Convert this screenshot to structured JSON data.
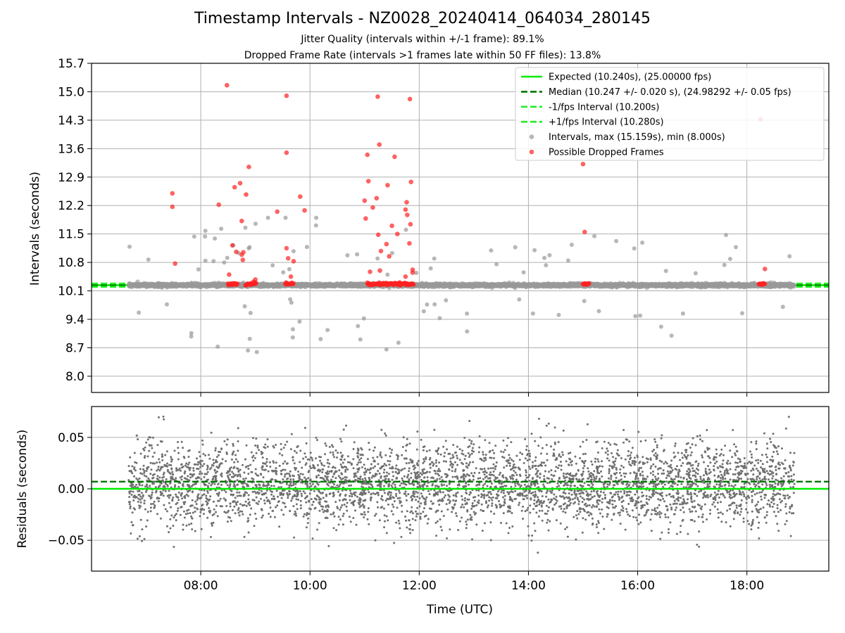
{
  "figure": {
    "title": "Timestamp Intervals - NZ0028_20240414_064034_280145",
    "subtitle_jitter": "Jitter Quality (intervals within +/-1 frame): 89.1%",
    "subtitle_dropped": "Dropped Frame Rate (intervals >1 frames late within 50 FF files): 13.8%"
  },
  "colors": {
    "expected": "#00ee00",
    "median": "#007700",
    "interval_band": "#22ee22",
    "intervals": "#999999",
    "dropped": "#ff2020",
    "residuals": "#707070",
    "grid": "#b0b0b0"
  },
  "chart_data": [
    {
      "id": "intervals",
      "type": "scatter",
      "ylabel": "Intervals (seconds)",
      "xlim_hours": [
        6.0,
        19.5
      ],
      "ylim": [
        7.6,
        15.7
      ],
      "yticks": [
        "8.0",
        "8.7",
        "9.4",
        "10.1",
        "10.8",
        "11.5",
        "12.2",
        "12.9",
        "13.6",
        "14.3",
        "15.0",
        "15.7"
      ],
      "grid": true,
      "legend_position": "top-right",
      "lines": [
        {
          "name": "Expected (10.240s), (25.00000 fps)",
          "y": 10.24,
          "style": "solid",
          "color": "#00ee00"
        },
        {
          "name": "Median (10.247 +/- 0.020 s), (24.98292 +/- 0.05 fps)",
          "y": 10.247,
          "style": "dashed",
          "color": "#007700"
        },
        {
          "name": "-1/fps Interval (10.200s)",
          "y": 10.2,
          "style": "dashed",
          "color": "#22ee22"
        },
        {
          "name": "+1/fps Interval (10.280s)",
          "y": 10.28,
          "style": "dashed",
          "color": "#22ee22"
        }
      ],
      "series": [
        {
          "name": "Intervals, max (15.159s), min (8.000s)",
          "color": "#999999",
          "count": 4250,
          "time_range_hours": [
            6.68,
            18.87
          ],
          "max": 15.159,
          "min": 8.0
        },
        {
          "name": "Possible Dropped Frames",
          "color": "#ff2020",
          "clusters_hours": [
            [
              8.5,
              8.68
            ],
            [
              8.82,
              9.02
            ],
            [
              9.55,
              9.7
            ],
            [
              11.05,
              11.25
            ],
            [
              11.27,
              11.75
            ],
            [
              11.75,
              11.9
            ],
            [
              15.0,
              15.12
            ],
            [
              18.22,
              18.33
            ]
          ],
          "points": [
            {
              "x": 8.48,
              "y": 15.16
            },
            {
              "x": 9.57,
              "y": 14.9
            },
            {
              "x": 11.24,
              "y": 14.88
            },
            {
              "x": 11.83,
              "y": 14.82
            },
            {
              "x": 18.25,
              "y": 14.32
            },
            {
              "x": 11.27,
              "y": 13.7
            },
            {
              "x": 9.57,
              "y": 13.5
            },
            {
              "x": 11.05,
              "y": 13.45
            },
            {
              "x": 11.55,
              "y": 13.4
            },
            {
              "x": 15.0,
              "y": 13.22
            },
            {
              "x": 8.88,
              "y": 13.15
            },
            {
              "x": 11.07,
              "y": 12.8
            },
            {
              "x": 8.72,
              "y": 12.75
            },
            {
              "x": 11.85,
              "y": 12.78
            },
            {
              "x": 8.62,
              "y": 12.65
            },
            {
              "x": 11.42,
              "y": 12.7
            },
            {
              "x": 7.48,
              "y": 12.5
            },
            {
              "x": 8.83,
              "y": 12.47
            },
            {
              "x": 9.82,
              "y": 12.42
            },
            {
              "x": 11.0,
              "y": 12.32
            },
            {
              "x": 11.22,
              "y": 12.38
            },
            {
              "x": 11.77,
              "y": 12.28
            },
            {
              "x": 8.33,
              "y": 12.22
            },
            {
              "x": 7.48,
              "y": 12.17
            },
            {
              "x": 11.15,
              "y": 12.15
            },
            {
              "x": 11.75,
              "y": 12.1
            },
            {
              "x": 9.4,
              "y": 12.05
            },
            {
              "x": 9.9,
              "y": 12.08
            },
            {
              "x": 11.78,
              "y": 11.97
            },
            {
              "x": 11.02,
              "y": 11.88
            },
            {
              "x": 8.75,
              "y": 11.82
            },
            {
              "x": 11.84,
              "y": 11.74
            },
            {
              "x": 11.5,
              "y": 11.7
            },
            {
              "x": 15.03,
              "y": 11.55
            },
            {
              "x": 11.25,
              "y": 11.48
            },
            {
              "x": 11.6,
              "y": 11.5
            },
            {
              "x": 11.82,
              "y": 11.27
            },
            {
              "x": 11.4,
              "y": 11.25
            },
            {
              "x": 8.58,
              "y": 11.22
            },
            {
              "x": 9.57,
              "y": 11.15
            },
            {
              "x": 8.65,
              "y": 11.06
            },
            {
              "x": 8.78,
              "y": 11.05
            },
            {
              "x": 8.75,
              "y": 10.99
            },
            {
              "x": 11.3,
              "y": 11.08
            },
            {
              "x": 11.45,
              "y": 10.95
            },
            {
              "x": 9.6,
              "y": 10.9
            },
            {
              "x": 8.77,
              "y": 10.86
            },
            {
              "x": 9.7,
              "y": 10.83
            },
            {
              "x": 7.53,
              "y": 10.77
            },
            {
              "x": 11.28,
              "y": 10.6
            },
            {
              "x": 11.88,
              "y": 10.62
            },
            {
              "x": 11.1,
              "y": 10.57
            },
            {
              "x": 11.88,
              "y": 10.55
            },
            {
              "x": 18.33,
              "y": 10.64
            },
            {
              "x": 9.65,
              "y": 10.45
            },
            {
              "x": 9.0,
              "y": 10.38
            },
            {
              "x": 11.75,
              "y": 10.45
            },
            {
              "x": 8.52,
              "y": 10.5
            }
          ]
        }
      ]
    },
    {
      "id": "residuals",
      "type": "scatter",
      "ylabel": "Residuals (seconds)",
      "xlabel": "Time (UTC)",
      "xlim_hours": [
        6.0,
        19.5
      ],
      "xticks": [
        "08:00",
        "10:00",
        "12:00",
        "14:00",
        "16:00",
        "18:00"
      ],
      "ylim": [
        -0.08,
        0.08
      ],
      "yticks": [
        "0.05",
        "0.00",
        "−0.05"
      ],
      "grid": true,
      "lines": [
        {
          "y": 0.0,
          "style": "solid",
          "color": "#00ee00"
        },
        {
          "y": 0.007,
          "style": "dashed",
          "color": "#007700"
        }
      ],
      "series": [
        {
          "color": "#707070",
          "count": 4250,
          "time_range_hours": [
            6.68,
            18.87
          ],
          "std": 0.02,
          "min": -0.071,
          "max": 0.076
        }
      ]
    }
  ]
}
